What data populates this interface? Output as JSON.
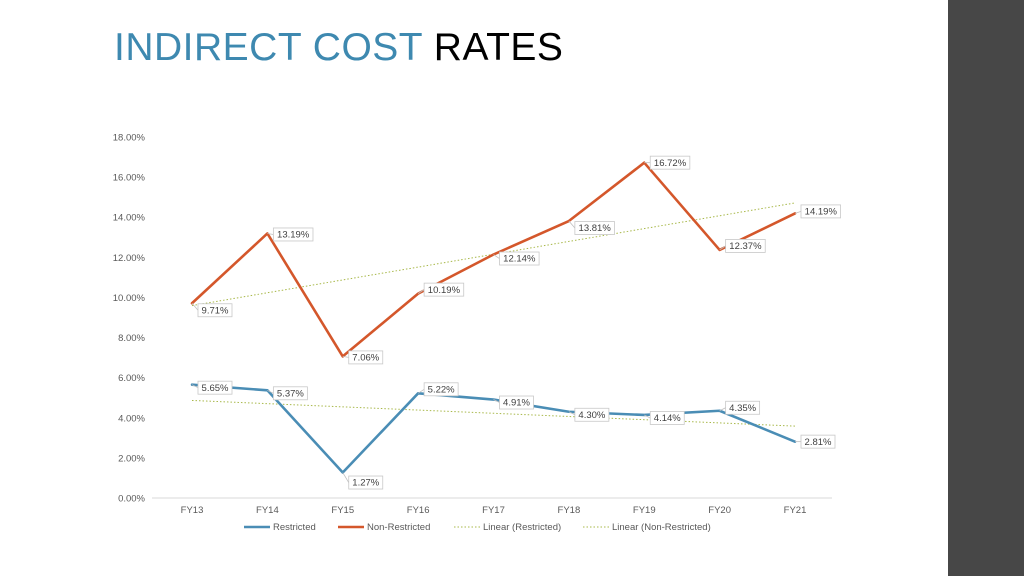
{
  "slide": {
    "title_part1": "INDIRECT COST",
    "title_part2": "RATES"
  },
  "colors": {
    "title_accent": "#3e89b0",
    "restricted": "#4a8db5",
    "non_restricted": "#d4572b",
    "trend": "#a8b84a",
    "side_band": "#474747"
  },
  "chart_data": {
    "type": "line",
    "title": "",
    "xlabel": "",
    "ylabel": "",
    "categories": [
      "FY13",
      "FY14",
      "FY15",
      "FY16",
      "FY17",
      "FY18",
      "FY19",
      "FY20",
      "FY21"
    ],
    "ylim": [
      0,
      18
    ],
    "yticks": [
      0,
      2,
      4,
      6,
      8,
      10,
      12,
      14,
      16,
      18
    ],
    "ytick_labels": [
      "0.00%",
      "2.00%",
      "4.00%",
      "6.00%",
      "8.00%",
      "10.00%",
      "12.00%",
      "14.00%",
      "16.00%",
      "18.00%"
    ],
    "grid": false,
    "legend_position": "bottom",
    "series": [
      {
        "name": "Restricted",
        "color": "#4a8db5",
        "values": [
          5.65,
          5.37,
          1.27,
          5.22,
          4.91,
          4.3,
          4.14,
          4.35,
          2.81
        ],
        "labels": [
          "5.65%",
          "5.37%",
          "1.27%",
          "5.22%",
          "4.91%",
          "4.30%",
          "4.14%",
          "4.35%",
          "2.81%"
        ]
      },
      {
        "name": "Non-Restricted",
        "color": "#d4572b",
        "values": [
          9.71,
          13.19,
          7.06,
          10.19,
          12.14,
          13.81,
          16.72,
          12.37,
          14.19
        ],
        "labels": [
          "9.71%",
          "13.19%",
          "7.06%",
          "10.19%",
          "12.14%",
          "13.81%",
          "16.72%",
          "12.37%",
          "14.19%"
        ]
      }
    ],
    "trendlines": [
      {
        "name": "Linear (Restricted)",
        "of": "Restricted",
        "type": "linear",
        "style": "dotted",
        "color": "#a8b84a"
      },
      {
        "name": "Linear (Non-Restricted)",
        "of": "Non-Restricted",
        "type": "linear",
        "style": "dotted",
        "color": "#a8b84a"
      }
    ]
  }
}
